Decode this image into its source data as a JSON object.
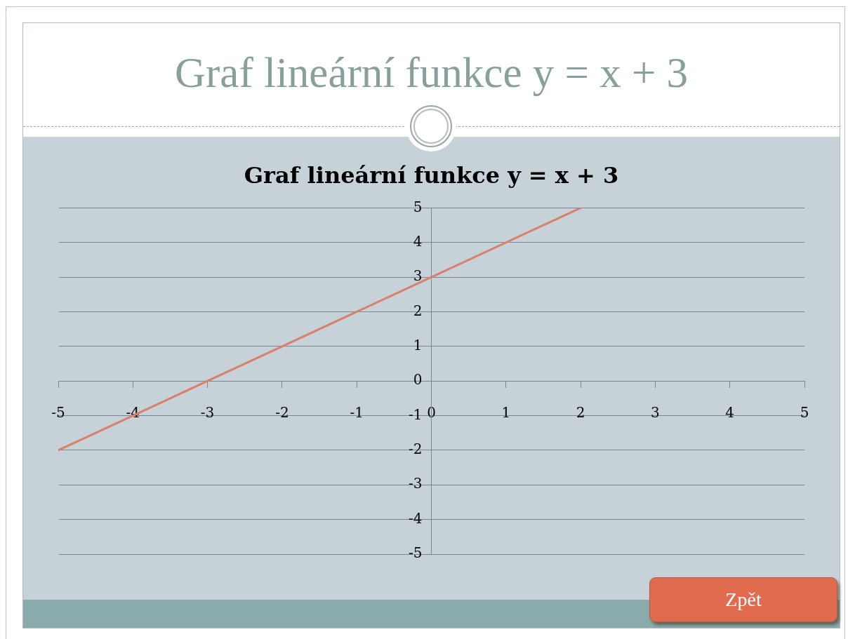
{
  "chart_data": {
    "type": "line",
    "title": "Graf lineární funkce y = x + 3",
    "subtitle": "Graf lineární funkce y = x + 3",
    "x": [
      -5,
      -4,
      -3,
      -2,
      -1,
      0,
      1,
      2
    ],
    "values": [
      -2,
      -1,
      0,
      1,
      2,
      3,
      4,
      5
    ],
    "color": "#dc7f69",
    "xlim": [
      -5,
      5
    ],
    "xticks": [
      -5,
      -4,
      -3,
      -2,
      -1,
      0,
      1,
      2,
      3,
      4,
      5
    ],
    "ylim": [
      -5,
      5
    ],
    "yticks": [
      -5,
      -4,
      -3,
      -2,
      -1,
      0,
      1,
      2,
      3,
      4,
      5
    ],
    "grid": "y",
    "marker": "none",
    "annotations": [
      "Zpět"
    ]
  }
}
